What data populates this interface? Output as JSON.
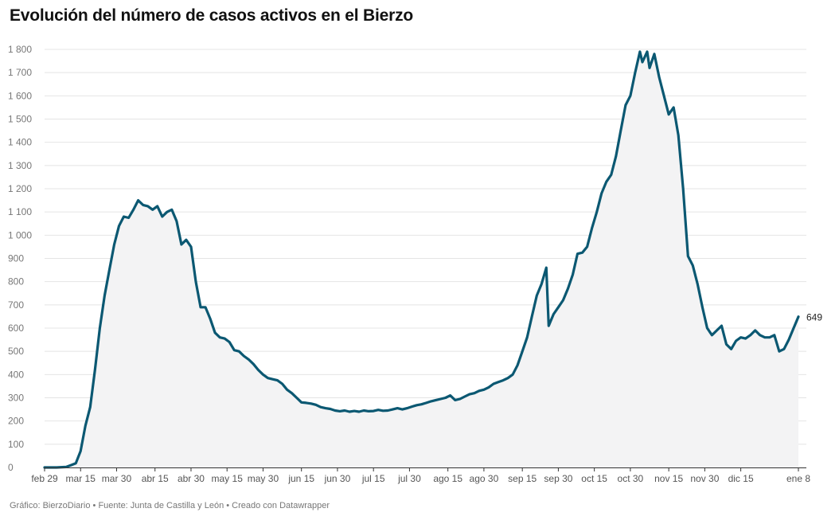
{
  "title": "Evolución del número de casos activos en el Bierzo",
  "footer": "Gráfico: BierzoDiario • Fuente: Junta de Castilla y León • Creado con Datawrapper",
  "colors": {
    "line": "#0b5872",
    "area": "#f3f3f4",
    "grid": "#e4e4e4",
    "axis": "#333333"
  },
  "chart_data": {
    "type": "area",
    "title": "Evolución del número de casos activos en el Bierzo",
    "xlabel": "",
    "ylabel": "",
    "ylim": [
      0,
      1800
    ],
    "grid": true,
    "y_ticks": [
      0,
      100,
      200,
      300,
      400,
      500,
      600,
      700,
      800,
      900,
      1000,
      1100,
      1200,
      1300,
      1400,
      1500,
      1600,
      1700,
      1800
    ],
    "y_tick_labels": [
      "0",
      "100",
      "200",
      "300",
      "400",
      "500",
      "600",
      "700",
      "800",
      "900",
      "1 000",
      "1 100",
      "1 200",
      "1 300",
      "1 400",
      "1 500",
      "1 600",
      "1 700",
      "1 800"
    ],
    "x_range": [
      "2020-02-29",
      "2021-01-08"
    ],
    "x_ticks": [
      {
        "date": "2020-02-29",
        "label": "feb 29"
      },
      {
        "date": "2020-03-15",
        "label": "mar 15"
      },
      {
        "date": "2020-03-30",
        "label": "mar 30"
      },
      {
        "date": "2020-04-15",
        "label": "abr 15"
      },
      {
        "date": "2020-04-30",
        "label": "abr 30"
      },
      {
        "date": "2020-05-15",
        "label": "may 15"
      },
      {
        "date": "2020-05-30",
        "label": "may 30"
      },
      {
        "date": "2020-06-15",
        "label": "jun 15"
      },
      {
        "date": "2020-06-30",
        "label": "jun 30"
      },
      {
        "date": "2020-07-15",
        "label": "jul 15"
      },
      {
        "date": "2020-07-30",
        "label": "jul 30"
      },
      {
        "date": "2020-08-15",
        "label": "ago 15"
      },
      {
        "date": "2020-08-30",
        "label": "ago 30"
      },
      {
        "date": "2020-09-15",
        "label": "sep 15"
      },
      {
        "date": "2020-09-30",
        "label": "sep 30"
      },
      {
        "date": "2020-10-15",
        "label": "oct 15"
      },
      {
        "date": "2020-10-30",
        "label": "oct 30"
      },
      {
        "date": "2020-11-15",
        "label": "nov 15"
      },
      {
        "date": "2020-11-30",
        "label": "nov 30"
      },
      {
        "date": "2020-12-15",
        "label": "dic 15"
      },
      {
        "date": "2021-01-08",
        "label": "ene 8"
      }
    ],
    "end_label": "649",
    "series": [
      {
        "points": [
          [
            "2020-02-29",
            0
          ],
          [
            "2020-03-05",
            0
          ],
          [
            "2020-03-09",
            2
          ],
          [
            "2020-03-11",
            10
          ],
          [
            "2020-03-13",
            18
          ],
          [
            "2020-03-15",
            70
          ],
          [
            "2020-03-17",
            180
          ],
          [
            "2020-03-19",
            260
          ],
          [
            "2020-03-21",
            420
          ],
          [
            "2020-03-23",
            600
          ],
          [
            "2020-03-25",
            740
          ],
          [
            "2020-03-27",
            850
          ],
          [
            "2020-03-29",
            960
          ],
          [
            "2020-03-31",
            1040
          ],
          [
            "2020-04-02",
            1080
          ],
          [
            "2020-04-04",
            1075
          ],
          [
            "2020-04-06",
            1110
          ],
          [
            "2020-04-08",
            1150
          ],
          [
            "2020-04-10",
            1130
          ],
          [
            "2020-04-12",
            1125
          ],
          [
            "2020-04-14",
            1110
          ],
          [
            "2020-04-16",
            1125
          ],
          [
            "2020-04-18",
            1080
          ],
          [
            "2020-04-20",
            1100
          ],
          [
            "2020-04-22",
            1110
          ],
          [
            "2020-04-24",
            1060
          ],
          [
            "2020-04-26",
            960
          ],
          [
            "2020-04-28",
            980
          ],
          [
            "2020-04-30",
            950
          ],
          [
            "2020-05-02",
            800
          ],
          [
            "2020-05-04",
            690
          ],
          [
            "2020-05-06",
            690
          ],
          [
            "2020-05-08",
            640
          ],
          [
            "2020-05-10",
            580
          ],
          [
            "2020-05-12",
            560
          ],
          [
            "2020-05-14",
            555
          ],
          [
            "2020-05-16",
            540
          ],
          [
            "2020-05-18",
            505
          ],
          [
            "2020-05-20",
            500
          ],
          [
            "2020-05-22",
            480
          ],
          [
            "2020-05-24",
            465
          ],
          [
            "2020-05-26",
            445
          ],
          [
            "2020-05-28",
            420
          ],
          [
            "2020-05-30",
            400
          ],
          [
            "2020-06-01",
            385
          ],
          [
            "2020-06-03",
            380
          ],
          [
            "2020-06-05",
            375
          ],
          [
            "2020-06-07",
            360
          ],
          [
            "2020-06-09",
            335
          ],
          [
            "2020-06-11",
            320
          ],
          [
            "2020-06-13",
            300
          ],
          [
            "2020-06-15",
            280
          ],
          [
            "2020-06-17",
            278
          ],
          [
            "2020-06-19",
            275
          ],
          [
            "2020-06-21",
            270
          ],
          [
            "2020-06-23",
            260
          ],
          [
            "2020-06-25",
            255
          ],
          [
            "2020-06-27",
            252
          ],
          [
            "2020-06-29",
            245
          ],
          [
            "2020-07-01",
            242
          ],
          [
            "2020-07-03",
            245
          ],
          [
            "2020-07-05",
            240
          ],
          [
            "2020-07-07",
            243
          ],
          [
            "2020-07-09",
            240
          ],
          [
            "2020-07-11",
            245
          ],
          [
            "2020-07-13",
            242
          ],
          [
            "2020-07-15",
            243
          ],
          [
            "2020-07-17",
            248
          ],
          [
            "2020-07-19",
            244
          ],
          [
            "2020-07-21",
            245
          ],
          [
            "2020-07-23",
            250
          ],
          [
            "2020-07-25",
            255
          ],
          [
            "2020-07-27",
            250
          ],
          [
            "2020-07-29",
            255
          ],
          [
            "2020-07-31",
            262
          ],
          [
            "2020-08-02",
            268
          ],
          [
            "2020-08-04",
            272
          ],
          [
            "2020-08-06",
            278
          ],
          [
            "2020-08-08",
            285
          ],
          [
            "2020-08-10",
            290
          ],
          [
            "2020-08-12",
            295
          ],
          [
            "2020-08-14",
            300
          ],
          [
            "2020-08-16",
            310
          ],
          [
            "2020-08-18",
            290
          ],
          [
            "2020-08-20",
            295
          ],
          [
            "2020-08-22",
            305
          ],
          [
            "2020-08-24",
            315
          ],
          [
            "2020-08-26",
            320
          ],
          [
            "2020-08-28",
            330
          ],
          [
            "2020-08-30",
            335
          ],
          [
            "2020-09-01",
            345
          ],
          [
            "2020-09-03",
            360
          ],
          [
            "2020-09-05",
            368
          ],
          [
            "2020-09-07",
            375
          ],
          [
            "2020-09-09",
            385
          ],
          [
            "2020-09-11",
            400
          ],
          [
            "2020-09-13",
            440
          ],
          [
            "2020-09-15",
            500
          ],
          [
            "2020-09-17",
            560
          ],
          [
            "2020-09-19",
            650
          ],
          [
            "2020-09-21",
            740
          ],
          [
            "2020-09-23",
            790
          ],
          [
            "2020-09-25",
            860
          ],
          [
            "2020-09-26",
            610
          ],
          [
            "2020-09-28",
            660
          ],
          [
            "2020-09-30",
            690
          ],
          [
            "2020-10-02",
            720
          ],
          [
            "2020-10-04",
            770
          ],
          [
            "2020-10-06",
            830
          ],
          [
            "2020-10-08",
            920
          ],
          [
            "2020-10-10",
            925
          ],
          [
            "2020-10-12",
            950
          ],
          [
            "2020-10-14",
            1030
          ],
          [
            "2020-10-16",
            1100
          ],
          [
            "2020-10-18",
            1180
          ],
          [
            "2020-10-20",
            1230
          ],
          [
            "2020-10-22",
            1260
          ],
          [
            "2020-10-24",
            1340
          ],
          [
            "2020-10-26",
            1450
          ],
          [
            "2020-10-28",
            1560
          ],
          [
            "2020-10-30",
            1600
          ],
          [
            "2020-11-01",
            1700
          ],
          [
            "2020-11-03",
            1790
          ],
          [
            "2020-11-04",
            1745
          ],
          [
            "2020-11-06",
            1790
          ],
          [
            "2020-11-07",
            1720
          ],
          [
            "2020-11-09",
            1780
          ],
          [
            "2020-11-11",
            1680
          ],
          [
            "2020-11-13",
            1600
          ],
          [
            "2020-11-15",
            1520
          ],
          [
            "2020-11-17",
            1550
          ],
          [
            "2020-11-19",
            1430
          ],
          [
            "2020-11-21",
            1200
          ],
          [
            "2020-11-23",
            910
          ],
          [
            "2020-11-25",
            870
          ],
          [
            "2020-11-27",
            790
          ],
          [
            "2020-11-29",
            690
          ],
          [
            "2020-12-01",
            600
          ],
          [
            "2020-12-03",
            570
          ],
          [
            "2020-12-05",
            590
          ],
          [
            "2020-12-07",
            610
          ],
          [
            "2020-12-09",
            530
          ],
          [
            "2020-12-11",
            510
          ],
          [
            "2020-12-13",
            545
          ],
          [
            "2020-12-15",
            560
          ],
          [
            "2020-12-17",
            555
          ],
          [
            "2020-12-19",
            570
          ],
          [
            "2020-12-21",
            590
          ],
          [
            "2020-12-23",
            570
          ],
          [
            "2020-12-25",
            560
          ],
          [
            "2020-12-27",
            560
          ],
          [
            "2020-12-29",
            570
          ],
          [
            "2020-12-31",
            500
          ],
          [
            "2021-01-02",
            510
          ],
          [
            "2021-01-04",
            550
          ],
          [
            "2021-01-06",
            600
          ],
          [
            "2021-01-08",
            649
          ]
        ]
      }
    ]
  }
}
